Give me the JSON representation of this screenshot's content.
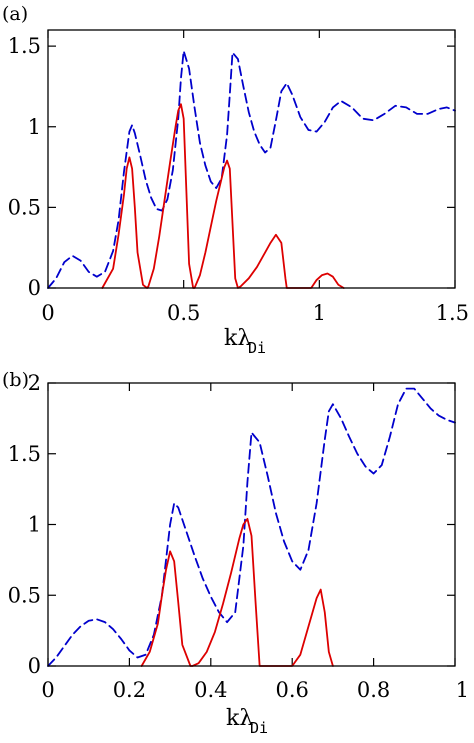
{
  "chart_data": [
    {
      "type": "line",
      "panel_label": "(a)",
      "xlabel": "kλ",
      "xlabel_sub": "Di",
      "ylabel": "",
      "xlim": [
        0,
        1.5
      ],
      "ylim": [
        0,
        1.6
      ],
      "xticks": [
        0,
        0.5,
        1,
        1.5
      ],
      "xtick_labels": [
        "0",
        "0.5",
        "1",
        "1.5"
      ],
      "yticks": [
        0,
        0.5,
        1,
        1.5
      ],
      "ytick_labels": [
        "0",
        "0.5",
        "1",
        "1.5"
      ],
      "grid": false,
      "series": [
        {
          "color": "#0000cc",
          "style": "dashed",
          "x": [
            0,
            0.03,
            0.06,
            0.09,
            0.12,
            0.15,
            0.18,
            0.21,
            0.24,
            0.26,
            0.28,
            0.3,
            0.31,
            0.32,
            0.34,
            0.36,
            0.38,
            0.4,
            0.42,
            0.44,
            0.46,
            0.48,
            0.49,
            0.5,
            0.52,
            0.54,
            0.56,
            0.58,
            0.6,
            0.62,
            0.64,
            0.66,
            0.67,
            0.68,
            0.7,
            0.72,
            0.74,
            0.76,
            0.78,
            0.8,
            0.82,
            0.84,
            0.86,
            0.88,
            0.9,
            0.93,
            0.96,
            0.99,
            1.02,
            1.05,
            1.08,
            1.12,
            1.16,
            1.2,
            1.24,
            1.28,
            1.32,
            1.36,
            1.4,
            1.44,
            1.47,
            1.5
          ],
          "values": [
            0.0,
            0.06,
            0.16,
            0.2,
            0.17,
            0.1,
            0.07,
            0.1,
            0.23,
            0.42,
            0.72,
            0.97,
            1.01,
            0.96,
            0.82,
            0.67,
            0.56,
            0.49,
            0.48,
            0.55,
            0.73,
            1.05,
            1.3,
            1.47,
            1.36,
            1.12,
            0.9,
            0.76,
            0.66,
            0.62,
            0.68,
            0.95,
            1.2,
            1.46,
            1.42,
            1.25,
            1.09,
            0.97,
            0.89,
            0.84,
            0.87,
            1.04,
            1.22,
            1.27,
            1.2,
            1.06,
            0.98,
            0.97,
            1.03,
            1.12,
            1.16,
            1.12,
            1.05,
            1.04,
            1.08,
            1.13,
            1.12,
            1.08,
            1.08,
            1.11,
            1.12,
            1.1
          ]
        },
        {
          "color": "#dd0000",
          "style": "solid",
          "x": [
            0.2,
            0.24,
            0.26,
            0.28,
            0.29,
            0.3,
            0.31,
            0.32,
            0.33,
            0.35,
            0.365,
            0.37,
            0.39,
            0.41,
            0.43,
            0.45,
            0.47,
            0.48,
            0.49,
            0.5,
            0.51,
            0.52,
            0.535,
            0.54,
            0.56,
            0.58,
            0.6,
            0.62,
            0.64,
            0.65,
            0.66,
            0.67,
            0.68,
            0.69,
            0.7,
            0.71,
            0.74,
            0.77,
            0.8,
            0.82,
            0.84,
            0.86,
            0.875,
            0.88,
            0.97,
            0.99,
            1.01,
            1.03,
            1.05,
            1.07,
            1.09
          ],
          "values": [
            0.0,
            0.12,
            0.33,
            0.58,
            0.74,
            0.81,
            0.74,
            0.5,
            0.22,
            0.02,
            0.0,
            0.01,
            0.12,
            0.32,
            0.55,
            0.78,
            1.0,
            1.1,
            1.14,
            1.05,
            0.6,
            0.15,
            0.0,
            0.0,
            0.08,
            0.22,
            0.38,
            0.54,
            0.68,
            0.75,
            0.79,
            0.74,
            0.4,
            0.06,
            0.0,
            0.01,
            0.06,
            0.13,
            0.22,
            0.28,
            0.33,
            0.28,
            0.06,
            0.0,
            0.0,
            0.05,
            0.08,
            0.09,
            0.07,
            0.02,
            0.0
          ]
        }
      ]
    },
    {
      "type": "line",
      "panel_label": "(b)",
      "xlabel": "kλ",
      "xlabel_sub": "Di",
      "ylabel": "",
      "xlim": [
        0,
        1
      ],
      "ylim": [
        0,
        2
      ],
      "xticks": [
        0,
        0.2,
        0.4,
        0.6,
        0.8,
        1
      ],
      "xtick_labels": [
        "0",
        "0.2",
        "0.4",
        "0.6",
        "0.8",
        "1"
      ],
      "yticks": [
        0,
        0.5,
        1,
        1.5,
        2
      ],
      "ytick_labels": [
        "0",
        "0.5",
        "1",
        "1.5",
        "2"
      ],
      "grid": false,
      "series": [
        {
          "color": "#0000cc",
          "style": "dashed",
          "x": [
            0,
            0.02,
            0.04,
            0.06,
            0.08,
            0.1,
            0.12,
            0.14,
            0.16,
            0.18,
            0.2,
            0.22,
            0.24,
            0.26,
            0.28,
            0.29,
            0.3,
            0.31,
            0.32,
            0.34,
            0.36,
            0.38,
            0.4,
            0.42,
            0.44,
            0.46,
            0.48,
            0.49,
            0.5,
            0.52,
            0.54,
            0.56,
            0.58,
            0.6,
            0.62,
            0.64,
            0.66,
            0.68,
            0.69,
            0.7,
            0.72,
            0.74,
            0.76,
            0.78,
            0.8,
            0.82,
            0.84,
            0.86,
            0.88,
            0.9,
            0.92,
            0.94,
            0.96,
            0.98,
            1.0
          ],
          "values": [
            0.0,
            0.06,
            0.14,
            0.22,
            0.28,
            0.32,
            0.33,
            0.31,
            0.26,
            0.19,
            0.11,
            0.06,
            0.08,
            0.22,
            0.5,
            0.75,
            1.0,
            1.15,
            1.12,
            0.95,
            0.78,
            0.62,
            0.49,
            0.38,
            0.31,
            0.38,
            0.85,
            1.3,
            1.65,
            1.58,
            1.34,
            1.08,
            0.88,
            0.74,
            0.68,
            0.82,
            1.15,
            1.6,
            1.8,
            1.85,
            1.75,
            1.62,
            1.5,
            1.41,
            1.36,
            1.42,
            1.62,
            1.85,
            1.96,
            1.96,
            1.89,
            1.82,
            1.77,
            1.74,
            1.72
          ]
        },
        {
          "color": "#dd0000",
          "style": "solid",
          "x": [
            0.23,
            0.25,
            0.27,
            0.28,
            0.29,
            0.3,
            0.31,
            0.32,
            0.33,
            0.35,
            0.355,
            0.37,
            0.39,
            0.41,
            0.43,
            0.45,
            0.47,
            0.48,
            0.49,
            0.5,
            0.51,
            0.52,
            0.6,
            0.62,
            0.64,
            0.66,
            0.67,
            0.68,
            0.69,
            0.7
          ],
          "values": [
            0.0,
            0.1,
            0.3,
            0.5,
            0.68,
            0.81,
            0.74,
            0.45,
            0.15,
            0.0,
            0.0,
            0.02,
            0.1,
            0.24,
            0.44,
            0.66,
            0.9,
            1.0,
            1.04,
            0.92,
            0.45,
            0.0,
            0.0,
            0.08,
            0.28,
            0.48,
            0.54,
            0.38,
            0.1,
            0.0
          ]
        }
      ]
    }
  ]
}
